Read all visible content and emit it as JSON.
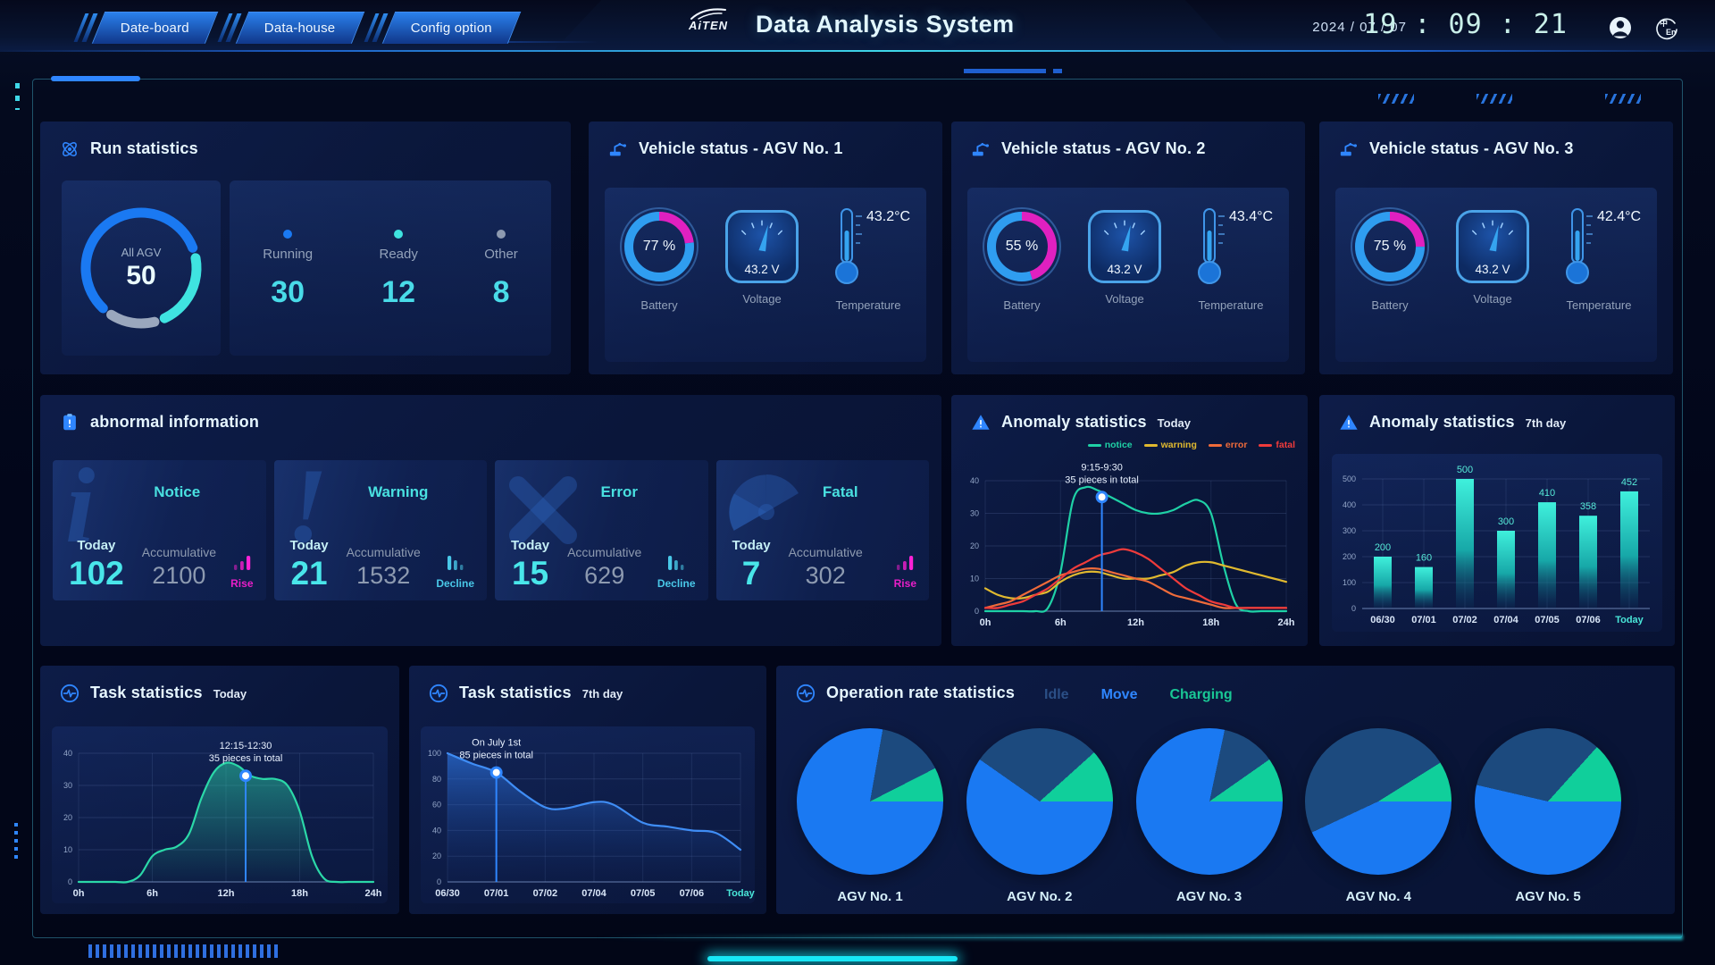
{
  "header": {
    "tabs": [
      {
        "label": "Date-board"
      },
      {
        "label": "Data-house"
      },
      {
        "label": "Config option"
      }
    ],
    "logo": "AiTEN",
    "title": "Data Analysis System",
    "date": "2024 / 07 / 07",
    "time": "19 : 09 : 21"
  },
  "colors": {
    "accent_blue": "#2f86ff",
    "accent_cyan": "#3fe3e0",
    "magenta": "#e81ec8",
    "idle": "#1c4a7e",
    "move": "#1a79f2",
    "charging": "#10cf9b",
    "notice": "#1fd1a6",
    "warning": "#e0b92f",
    "error": "#ef6b3a",
    "fatal": "#ef3b3b"
  },
  "run_stats": {
    "title": "Run statistics",
    "donut": {
      "center_label": "All AGV",
      "center_value": "50"
    },
    "donut_segments": [
      {
        "name": "Running",
        "value": 30,
        "color": "#1a79f2"
      },
      {
        "name": "Ready",
        "value": 12,
        "color": "#3fe3e0"
      },
      {
        "name": "Other",
        "value": 8,
        "color": "#9aa7bd"
      }
    ],
    "stats": [
      {
        "label": "Running",
        "value": "30",
        "dot_color": "#1a79f2"
      },
      {
        "label": "Ready",
        "value": "12",
        "dot_color": "#3fe3e0"
      },
      {
        "label": "Other",
        "value": "8",
        "dot_color": "#8d9ab0"
      }
    ]
  },
  "vehicles": {
    "battery_label": "Battery",
    "voltage_label": "Voltage",
    "temperature_label": "Temperature",
    "items": [
      {
        "title": "Vehicle status - AGV No. 1",
        "battery": "77 %",
        "battery_pct": 77,
        "voltage": "43.2 V",
        "temperature": "43.2°C"
      },
      {
        "title": "Vehicle status - AGV No. 2",
        "battery": "55 %",
        "battery_pct": 55,
        "voltage": "43.2 V",
        "temperature": "43.4°C"
      },
      {
        "title": "Vehicle status - AGV No. 3",
        "battery": "75 %",
        "battery_pct": 75,
        "voltage": "43.2 V",
        "temperature": "42.4°C"
      }
    ]
  },
  "abnormal": {
    "title": "abnormal information",
    "today_label": "Today",
    "accumulative_label": "Accumulative",
    "cards": [
      {
        "name": "Notice",
        "glyph": "i",
        "today": "102",
        "accumulative": "2100",
        "trend": "Rise",
        "trend_dir": "up"
      },
      {
        "name": "Warning",
        "glyph": "!",
        "today": "21",
        "accumulative": "1532",
        "trend": "Decline",
        "trend_dir": "down"
      },
      {
        "name": "Error",
        "glyph": "x",
        "today": "15",
        "accumulative": "629",
        "trend": "Decline",
        "trend_dir": "down"
      },
      {
        "name": "Fatal",
        "glyph": "radiation",
        "today": "7",
        "accumulative": "302",
        "trend": "Rise",
        "trend_dir": "up"
      }
    ]
  },
  "anomaly_today": {
    "title": "Anomaly statistics",
    "subtitle": "Today"
  },
  "anomaly_week": {
    "title": "Anomaly statistics",
    "subtitle": "7th day"
  },
  "task_today": {
    "title": "Task statistics",
    "subtitle": "Today"
  },
  "task_week": {
    "title": "Task statistics",
    "subtitle": "7th day"
  },
  "operation": {
    "title": "Operation rate statistics",
    "legend": [
      {
        "label": "Idle",
        "color": "#2b4f86"
      },
      {
        "label": "Move",
        "color": "#2f86ff"
      },
      {
        "label": "Charging",
        "color": "#19c795"
      }
    ],
    "pies": [
      {
        "label": "AGV No. 1",
        "start": 10,
        "idle_deg": 53,
        "charging_deg": 27
      },
      {
        "label": "AGV No. 2",
        "start": 305,
        "idle_deg": 103,
        "charging_deg": 42
      },
      {
        "label": "AGV No. 3",
        "start": 12,
        "idle_deg": 43,
        "charging_deg": 35
      },
      {
        "label": "AGV No. 4",
        "start": 245,
        "idle_deg": 173,
        "charging_deg": 32
      },
      {
        "label": "AGV No. 5",
        "start": 283,
        "idle_deg": 119,
        "charging_deg": 48
      }
    ]
  },
  "chart_data": [
    {
      "id": "anomaly-today",
      "type": "line",
      "title": "Anomaly statistics",
      "subtitle": "Today",
      "x_range": [
        0,
        24
      ],
      "x_ticks": [
        {
          "v": 0,
          "label": "0h"
        },
        {
          "v": 6,
          "label": "6h"
        },
        {
          "v": 12,
          "label": "12h"
        },
        {
          "v": 18,
          "label": "18h"
        },
        {
          "v": 24,
          "label": "24h"
        }
      ],
      "ylim": [
        0,
        40
      ],
      "yticks": [
        0,
        10,
        20,
        30,
        40
      ],
      "grid": true,
      "legend_position": "top-right",
      "series": [
        {
          "name": "notice",
          "color": "#1fd1a6",
          "values": [
            0,
            0,
            0,
            0,
            0,
            1,
            12,
            34,
            38,
            37,
            35,
            33,
            31,
            30,
            30,
            31,
            33,
            34,
            30,
            14,
            2,
            0,
            0,
            0,
            0
          ]
        },
        {
          "name": "warning",
          "color": "#e0b92f",
          "values": [
            7,
            5,
            4,
            4,
            5,
            6,
            9,
            11,
            12,
            12,
            11,
            10,
            10,
            10,
            11,
            12,
            14,
            15,
            15,
            14,
            13,
            12,
            11,
            10,
            9
          ]
        },
        {
          "name": "error",
          "color": "#ef6b3a",
          "values": [
            1,
            2,
            3,
            5,
            7,
            9,
            11,
            12,
            13,
            13,
            12,
            11,
            10,
            9,
            7,
            5,
            4,
            3,
            2,
            1,
            1,
            1,
            1,
            1,
            1
          ]
        },
        {
          "name": "fatal",
          "color": "#ef3b3b",
          "values": [
            1,
            1,
            2,
            3,
            5,
            7,
            10,
            13,
            15,
            17,
            18,
            19,
            18,
            16,
            13,
            10,
            7,
            5,
            3,
            2,
            1,
            1,
            1,
            1,
            1
          ]
        }
      ],
      "annotation": {
        "x": 9.3,
        "y": 35,
        "lines": [
          "9:15-9:30",
          "35 pieces in total"
        ]
      }
    },
    {
      "id": "anomaly-week",
      "type": "bar",
      "title": "Anomaly statistics",
      "subtitle": "7th day",
      "categories": [
        "06/30",
        "07/01",
        "07/02",
        "07/04",
        "07/05",
        "07/06",
        "Today"
      ],
      "values": [
        200,
        160,
        500,
        300,
        410,
        358,
        452
      ],
      "ylim": [
        0,
        500
      ],
      "yticks": [
        0,
        100,
        200,
        300,
        400,
        500
      ],
      "grid": true,
      "cyan_last": true,
      "bar_gradient": [
        "#3ff0dc",
        "#17a8a8",
        "rgba(12,70,110,0.12)"
      ]
    },
    {
      "id": "task-today",
      "type": "area",
      "title": "Task statistics",
      "subtitle": "Today",
      "x_range": [
        0,
        24
      ],
      "x_ticks": [
        {
          "v": 0,
          "label": "0h"
        },
        {
          "v": 6,
          "label": "6h"
        },
        {
          "v": 12,
          "label": "12h"
        },
        {
          "v": 18,
          "label": "18h"
        },
        {
          "v": 24,
          "label": "24h"
        }
      ],
      "ylim": [
        0,
        40
      ],
      "yticks": [
        0,
        10,
        20,
        30,
        40
      ],
      "grid": true,
      "series": [
        {
          "name": "tasks",
          "color": "#2bd8a8",
          "fill": [
            "rgba(43,216,168,0.50)",
            "rgba(43,216,168,0.02)"
          ],
          "values": [
            0,
            0,
            0,
            0,
            0,
            2,
            8,
            10,
            11,
            15,
            26,
            34,
            37,
            36,
            33,
            32,
            32,
            30,
            22,
            8,
            1,
            0,
            0,
            0,
            0
          ]
        }
      ],
      "annotation": {
        "x": 13.6,
        "y": 33,
        "lines": [
          "12:15-12:30",
          "35 pieces in total"
        ]
      }
    },
    {
      "id": "task-week",
      "type": "area",
      "title": "Task statistics",
      "subtitle": "7th day",
      "x_range": [
        0,
        6
      ],
      "x_ticks": [
        {
          "v": 0,
          "label": "06/30"
        },
        {
          "v": 1,
          "label": "07/01"
        },
        {
          "v": 2,
          "label": "07/02"
        },
        {
          "v": 3,
          "label": "07/04"
        },
        {
          "v": 4,
          "label": "07/05"
        },
        {
          "v": 5,
          "label": "07/06"
        },
        {
          "v": 6,
          "label": "Today"
        }
      ],
      "ylim": [
        0,
        100
      ],
      "yticks": [
        0,
        20,
        40,
        60,
        80,
        100
      ],
      "grid": true,
      "cyan_last": true,
      "series": [
        {
          "name": "tasks",
          "color": "#3f8df5",
          "fill": [
            "rgba(47,125,240,0.60)",
            "rgba(20,50,120,0.05)"
          ],
          "points": [
            [
              0,
              100
            ],
            [
              0.5,
              92
            ],
            [
              1,
              85
            ],
            [
              1.5,
              70
            ],
            [
              2,
              58
            ],
            [
              2.4,
              57
            ],
            [
              3,
              62
            ],
            [
              3.4,
              60
            ],
            [
              4,
              46
            ],
            [
              4.5,
              43
            ],
            [
              5,
              40
            ],
            [
              5.5,
              38
            ],
            [
              6,
              25
            ]
          ]
        }
      ],
      "annotation": {
        "x": 1,
        "y": 85,
        "lines": [
          "On July 1st",
          "85 pieces in total"
        ]
      }
    }
  ]
}
